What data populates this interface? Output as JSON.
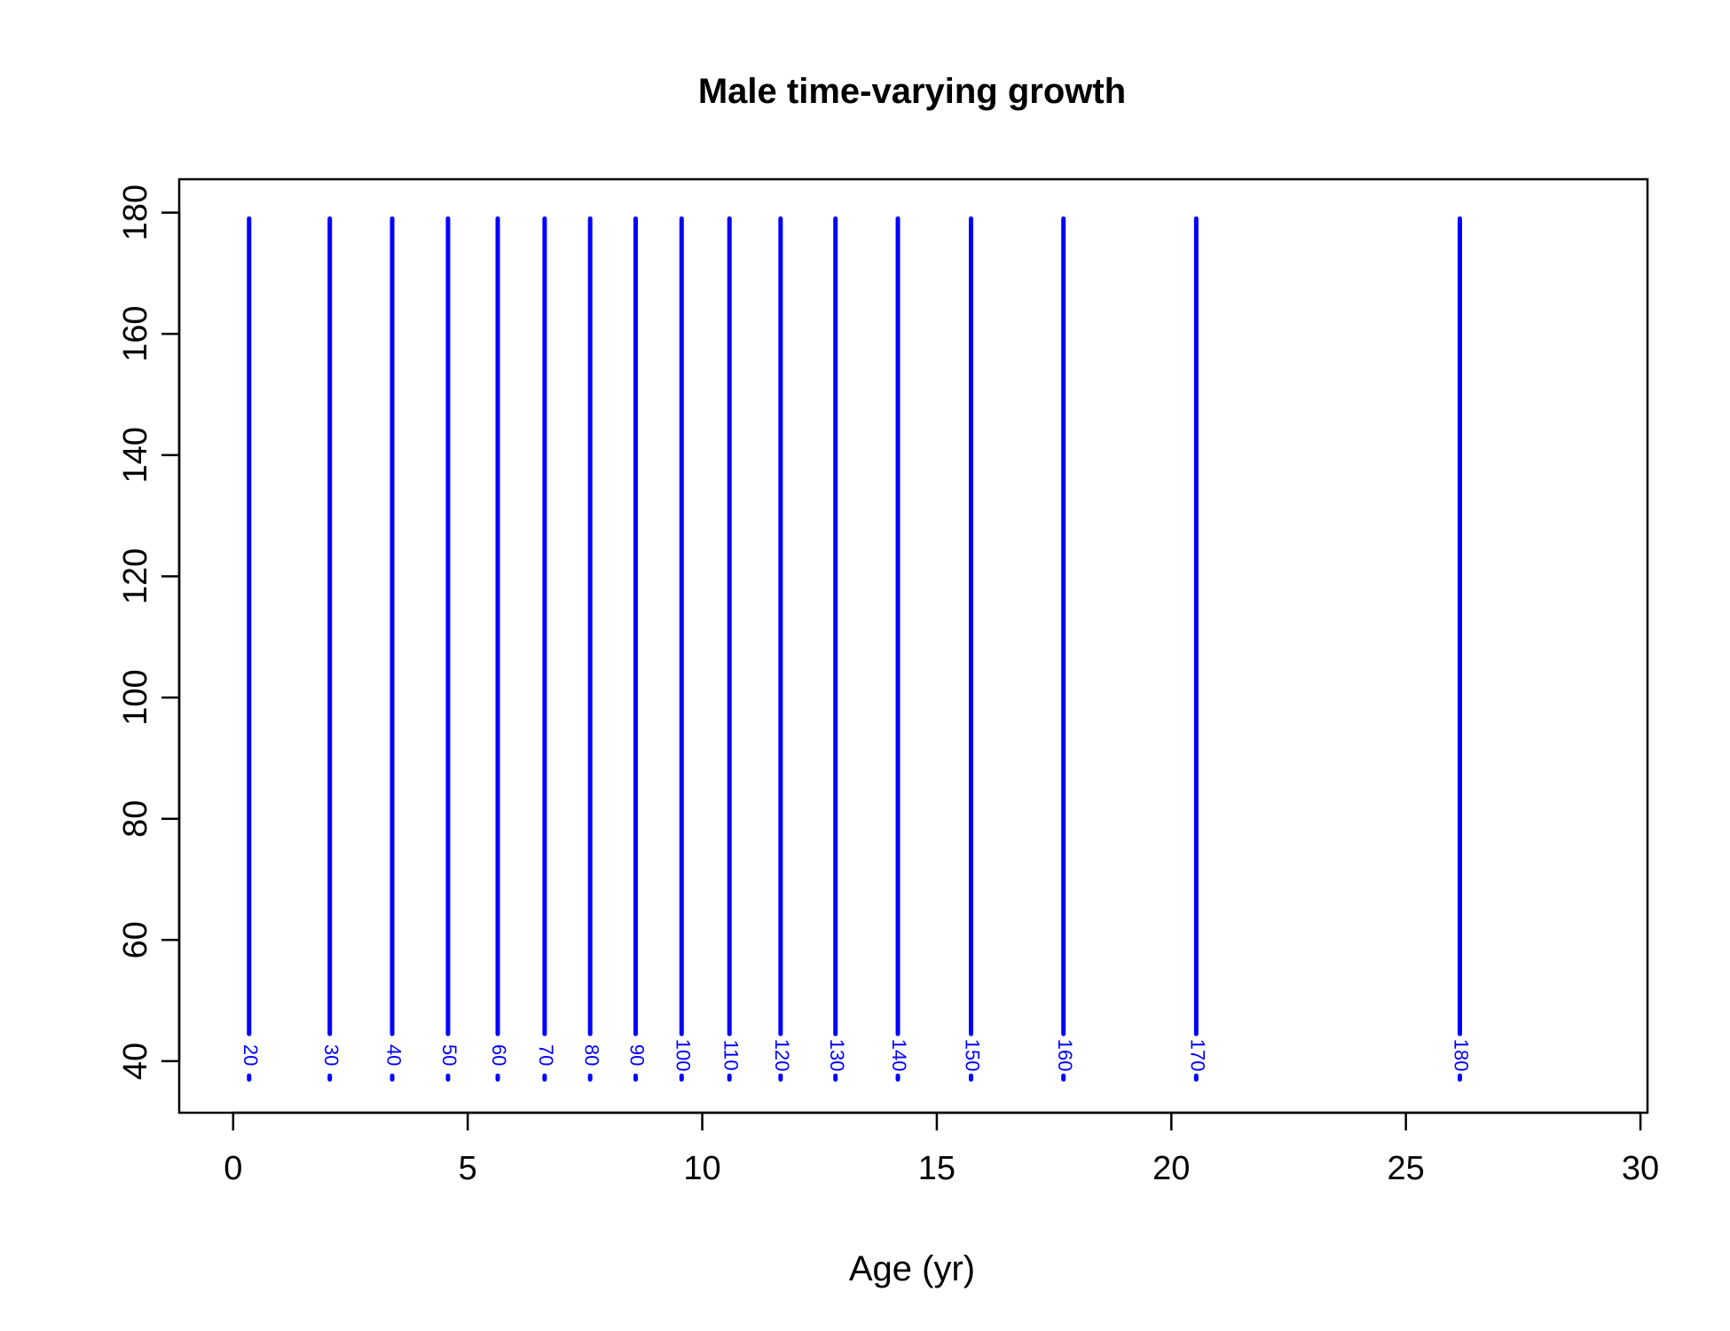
{
  "chart_data": {
    "type": "line",
    "title": "Male time-varying growth",
    "xlabel": "Age (yr)",
    "ylabel": "",
    "xlim": [
      -1.15,
      30.15
    ],
    "ylim": [
      31.5,
      185.5
    ],
    "xticks": [
      0,
      5,
      10,
      15,
      20,
      25,
      30
    ],
    "yticks": [
      40,
      60,
      80,
      100,
      120,
      140,
      160,
      180
    ],
    "grid": false,
    "legend": "none",
    "color": "#0000FF",
    "y_top": 179,
    "series": [
      {
        "name": "20",
        "x": 0.34,
        "y_bottom": 37
      },
      {
        "name": "30",
        "x": 2.06,
        "y_bottom": 37
      },
      {
        "name": "40",
        "x": 3.39,
        "y_bottom": 37
      },
      {
        "name": "50",
        "x": 4.58,
        "y_bottom": 37
      },
      {
        "name": "60",
        "x": 5.64,
        "y_bottom": 37
      },
      {
        "name": "70",
        "x": 6.64,
        "y_bottom": 37
      },
      {
        "name": "80",
        "x": 7.61,
        "y_bottom": 37
      },
      {
        "name": "90",
        "x": 8.58,
        "y_bottom": 37
      },
      {
        "name": "100",
        "x": 9.56,
        "y_bottom": 37
      },
      {
        "name": "110",
        "x": 10.58,
        "y_bottom": 37
      },
      {
        "name": "120",
        "x": 11.67,
        "y_bottom": 37
      },
      {
        "name": "130",
        "x": 12.84,
        "y_bottom": 37
      },
      {
        "name": "140",
        "x": 14.17,
        "y_bottom": 37
      },
      {
        "name": "150",
        "x": 15.73,
        "y_bottom": 37
      },
      {
        "name": "160",
        "x": 17.7,
        "y_bottom": 37
      },
      {
        "name": "170",
        "x": 20.53,
        "y_bottom": 37
      },
      {
        "name": "180",
        "x": 26.15,
        "y_bottom": 37
      }
    ]
  }
}
